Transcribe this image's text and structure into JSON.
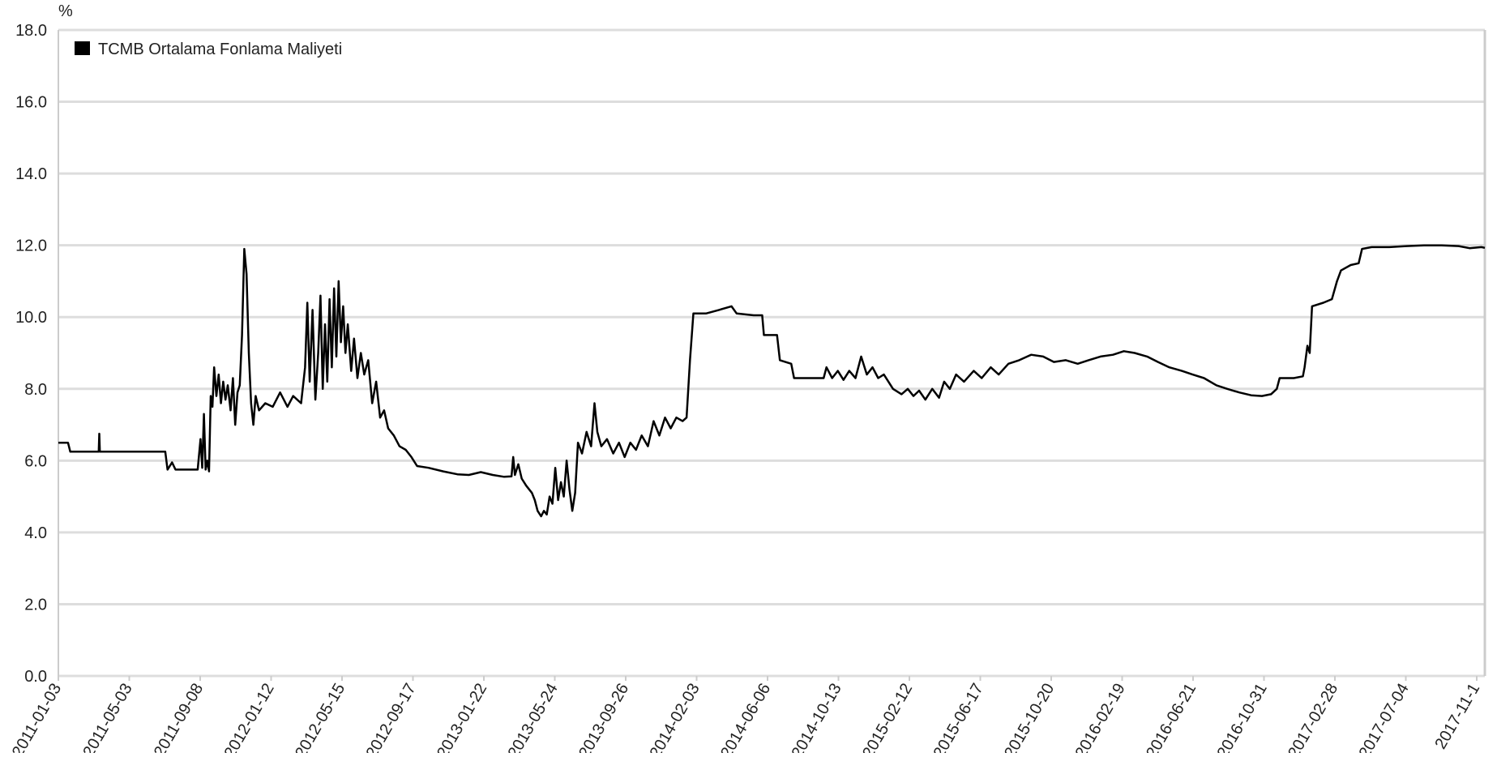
{
  "chart_data": {
    "type": "line",
    "unit_label": "%",
    "ylim": [
      0,
      18
    ],
    "yticks": [
      "0.0",
      "2.0",
      "4.0",
      "6.0",
      "8.0",
      "10.0",
      "12.0",
      "14.0",
      "16.0",
      "18.0"
    ],
    "xlim": [
      "2011-01-03",
      "2017-11-16"
    ],
    "xtick_labels": [
      "2011-01-03",
      "2011-05-03",
      "2011-09-08",
      "2012-01-12",
      "2012-05-15",
      "2012-09-17",
      "2013-01-22",
      "2013-05-24",
      "2013-09-26",
      "2014-02-03",
      "2014-06-06",
      "2014-10-13",
      "2015-02-12",
      "2015-06-17",
      "2015-10-20",
      "2016-02-19",
      "2016-06-21",
      "2016-10-31",
      "2017-02-28",
      "2017-07-04",
      "2017-11-1"
    ],
    "grid": true,
    "legend_position": "top-left",
    "colors": {
      "series": "#000000",
      "grid": "#dddddd",
      "frame": "#cccccc",
      "text": "#222222"
    },
    "series": [
      {
        "name": "TCMB Ortalama Fonlama Maliyeti",
        "points": [
          [
            "2011-01-03",
            6.5
          ],
          [
            "2011-01-20",
            6.5
          ],
          [
            "2011-01-24",
            6.25
          ],
          [
            "2011-03-15",
            6.25
          ],
          [
            "2011-03-16",
            6.75
          ],
          [
            "2011-03-17",
            6.25
          ],
          [
            "2011-06-28",
            6.25
          ],
          [
            "2011-07-10",
            6.25
          ],
          [
            "2011-07-14",
            5.75
          ],
          [
            "2011-07-22",
            5.95
          ],
          [
            "2011-07-28",
            5.75
          ],
          [
            "2011-09-05",
            5.75
          ],
          [
            "2011-09-10",
            6.6
          ],
          [
            "2011-09-13",
            5.8
          ],
          [
            "2011-09-16",
            7.3
          ],
          [
            "2011-09-19",
            5.75
          ],
          [
            "2011-09-22",
            6.0
          ],
          [
            "2011-09-25",
            5.7
          ],
          [
            "2011-09-28",
            7.8
          ],
          [
            "2011-10-01",
            7.5
          ],
          [
            "2011-10-04",
            8.6
          ],
          [
            "2011-10-08",
            7.8
          ],
          [
            "2011-10-12",
            8.4
          ],
          [
            "2011-10-16",
            7.6
          ],
          [
            "2011-10-20",
            8.2
          ],
          [
            "2011-10-24",
            7.7
          ],
          [
            "2011-10-28",
            8.1
          ],
          [
            "2011-11-02",
            7.4
          ],
          [
            "2011-11-06",
            8.3
          ],
          [
            "2011-11-10",
            7.0
          ],
          [
            "2011-11-14",
            7.9
          ],
          [
            "2011-11-18",
            8.1
          ],
          [
            "2011-11-22",
            9.5
          ],
          [
            "2011-11-26",
            11.9
          ],
          [
            "2011-11-30",
            11.2
          ],
          [
            "2011-12-04",
            9.0
          ],
          [
            "2011-12-08",
            7.6
          ],
          [
            "2011-12-12",
            7.0
          ],
          [
            "2011-12-16",
            7.8
          ],
          [
            "2011-12-22",
            7.4
          ],
          [
            "2012-01-02",
            7.6
          ],
          [
            "2012-01-15",
            7.5
          ],
          [
            "2012-01-28",
            7.9
          ],
          [
            "2012-02-10",
            7.5
          ],
          [
            "2012-02-20",
            7.8
          ],
          [
            "2012-03-05",
            7.6
          ],
          [
            "2012-03-12",
            8.6
          ],
          [
            "2012-03-16",
            10.4
          ],
          [
            "2012-03-20",
            8.2
          ],
          [
            "2012-03-25",
            10.2
          ],
          [
            "2012-03-30",
            7.7
          ],
          [
            "2012-04-04",
            9.0
          ],
          [
            "2012-04-08",
            10.6
          ],
          [
            "2012-04-12",
            8.0
          ],
          [
            "2012-04-16",
            9.8
          ],
          [
            "2012-04-20",
            8.2
          ],
          [
            "2012-04-24",
            10.5
          ],
          [
            "2012-04-28",
            8.6
          ],
          [
            "2012-05-02",
            10.8
          ],
          [
            "2012-05-06",
            8.9
          ],
          [
            "2012-05-10",
            11.0
          ],
          [
            "2012-05-14",
            9.3
          ],
          [
            "2012-05-18",
            10.3
          ],
          [
            "2012-05-22",
            9.0
          ],
          [
            "2012-05-26",
            9.8
          ],
          [
            "2012-06-01",
            8.5
          ],
          [
            "2012-06-06",
            9.4
          ],
          [
            "2012-06-12",
            8.3
          ],
          [
            "2012-06-18",
            9.0
          ],
          [
            "2012-06-24",
            8.4
          ],
          [
            "2012-07-01",
            8.8
          ],
          [
            "2012-07-08",
            7.6
          ],
          [
            "2012-07-15",
            8.2
          ],
          [
            "2012-07-22",
            7.2
          ],
          [
            "2012-07-29",
            7.4
          ],
          [
            "2012-08-05",
            6.9
          ],
          [
            "2012-08-15",
            6.7
          ],
          [
            "2012-08-25",
            6.4
          ],
          [
            "2012-09-05",
            6.3
          ],
          [
            "2012-09-15",
            6.1
          ],
          [
            "2012-09-25",
            5.85
          ],
          [
            "2012-10-15",
            5.8
          ],
          [
            "2012-11-10",
            5.7
          ],
          [
            "2012-12-05",
            5.62
          ],
          [
            "2012-12-25",
            5.6
          ],
          [
            "2013-01-15",
            5.68
          ],
          [
            "2013-02-05",
            5.6
          ],
          [
            "2013-02-25",
            5.55
          ],
          [
            "2013-03-10",
            5.56
          ],
          [
            "2013-03-13",
            6.1
          ],
          [
            "2013-03-16",
            5.6
          ],
          [
            "2013-03-22",
            5.9
          ],
          [
            "2013-03-28",
            5.5
          ],
          [
            "2013-04-05",
            5.3
          ],
          [
            "2013-04-15",
            5.1
          ],
          [
            "2013-04-20",
            4.9
          ],
          [
            "2013-04-25",
            4.6
          ],
          [
            "2013-05-01",
            4.45
          ],
          [
            "2013-05-06",
            4.6
          ],
          [
            "2013-05-11",
            4.5
          ],
          [
            "2013-05-16",
            5.0
          ],
          [
            "2013-05-21",
            4.8
          ],
          [
            "2013-05-26",
            5.8
          ],
          [
            "2013-05-31",
            4.9
          ],
          [
            "2013-06-05",
            5.4
          ],
          [
            "2013-06-10",
            5.0
          ],
          [
            "2013-06-15",
            6.0
          ],
          [
            "2013-06-20",
            5.2
          ],
          [
            "2013-06-25",
            4.6
          ],
          [
            "2013-06-30",
            5.1
          ],
          [
            "2013-07-05",
            6.5
          ],
          [
            "2013-07-12",
            6.2
          ],
          [
            "2013-07-20",
            6.8
          ],
          [
            "2013-07-28",
            6.4
          ],
          [
            "2013-08-03",
            7.6
          ],
          [
            "2013-08-08",
            6.8
          ],
          [
            "2013-08-15",
            6.4
          ],
          [
            "2013-08-25",
            6.6
          ],
          [
            "2013-09-05",
            6.2
          ],
          [
            "2013-09-15",
            6.5
          ],
          [
            "2013-09-25",
            6.1
          ],
          [
            "2013-10-05",
            6.5
          ],
          [
            "2013-10-15",
            6.3
          ],
          [
            "2013-10-25",
            6.7
          ],
          [
            "2013-11-05",
            6.4
          ],
          [
            "2013-11-15",
            7.1
          ],
          [
            "2013-11-25",
            6.7
          ],
          [
            "2013-12-05",
            7.2
          ],
          [
            "2013-12-15",
            6.9
          ],
          [
            "2013-12-25",
            7.2
          ],
          [
            "2014-01-05",
            7.1
          ],
          [
            "2014-01-12",
            7.2
          ],
          [
            "2014-01-18",
            8.8
          ],
          [
            "2014-01-24",
            10.1
          ],
          [
            "2014-02-15",
            10.1
          ],
          [
            "2014-03-10",
            10.2
          ],
          [
            "2014-04-01",
            10.3
          ],
          [
            "2014-04-10",
            10.1
          ],
          [
            "2014-05-10",
            10.05
          ],
          [
            "2014-05-25",
            10.05
          ],
          [
            "2014-05-28",
            9.5
          ],
          [
            "2014-06-20",
            9.5
          ],
          [
            "2014-06-25",
            8.8
          ],
          [
            "2014-07-15",
            8.7
          ],
          [
            "2014-07-20",
            8.3
          ],
          [
            "2014-09-10",
            8.3
          ],
          [
            "2014-09-15",
            8.6
          ],
          [
            "2014-09-25",
            8.3
          ],
          [
            "2014-10-05",
            8.5
          ],
          [
            "2014-10-15",
            8.25
          ],
          [
            "2014-10-25",
            8.5
          ],
          [
            "2014-11-05",
            8.3
          ],
          [
            "2014-11-15",
            8.9
          ],
          [
            "2014-11-25",
            8.4
          ],
          [
            "2014-12-05",
            8.6
          ],
          [
            "2014-12-15",
            8.3
          ],
          [
            "2014-12-25",
            8.4
          ],
          [
            "2015-01-10",
            8.0
          ],
          [
            "2015-01-25",
            7.85
          ],
          [
            "2015-02-05",
            8.0
          ],
          [
            "2015-02-15",
            7.8
          ],
          [
            "2015-02-25",
            7.95
          ],
          [
            "2015-03-08",
            7.7
          ],
          [
            "2015-03-20",
            8.0
          ],
          [
            "2015-04-01",
            7.75
          ],
          [
            "2015-04-10",
            8.2
          ],
          [
            "2015-04-20",
            8.0
          ],
          [
            "2015-05-01",
            8.4
          ],
          [
            "2015-05-15",
            8.2
          ],
          [
            "2015-06-01",
            8.5
          ],
          [
            "2015-06-15",
            8.3
          ],
          [
            "2015-07-01",
            8.6
          ],
          [
            "2015-07-15",
            8.4
          ],
          [
            "2015-08-01",
            8.7
          ],
          [
            "2015-08-20",
            8.8
          ],
          [
            "2015-09-10",
            8.95
          ],
          [
            "2015-10-01",
            8.9
          ],
          [
            "2015-10-20",
            8.75
          ],
          [
            "2015-11-10",
            8.8
          ],
          [
            "2015-12-01",
            8.7
          ],
          [
            "2015-12-20",
            8.8
          ],
          [
            "2016-01-10",
            8.9
          ],
          [
            "2016-02-01",
            8.95
          ],
          [
            "2016-02-20",
            9.05
          ],
          [
            "2016-03-10",
            9.0
          ],
          [
            "2016-04-01",
            8.9
          ],
          [
            "2016-04-20",
            8.75
          ],
          [
            "2016-05-10",
            8.6
          ],
          [
            "2016-06-01",
            8.5
          ],
          [
            "2016-06-20",
            8.4
          ],
          [
            "2016-07-10",
            8.3
          ],
          [
            "2016-08-01",
            8.1
          ],
          [
            "2016-08-20",
            8.0
          ],
          [
            "2016-09-10",
            7.9
          ],
          [
            "2016-10-01",
            7.82
          ],
          [
            "2016-10-20",
            7.8
          ],
          [
            "2016-11-05",
            7.85
          ],
          [
            "2016-11-15",
            8.0
          ],
          [
            "2016-11-20",
            8.3
          ],
          [
            "2016-12-15",
            8.3
          ],
          [
            "2016-12-31",
            8.35
          ],
          [
            "2017-01-03",
            8.6
          ],
          [
            "2017-01-08",
            9.2
          ],
          [
            "2017-01-12",
            9.0
          ],
          [
            "2017-01-16",
            10.3
          ],
          [
            "2017-02-05",
            10.4
          ],
          [
            "2017-02-20",
            10.5
          ],
          [
            "2017-03-01",
            11.0
          ],
          [
            "2017-03-08",
            11.3
          ],
          [
            "2017-03-25",
            11.45
          ],
          [
            "2017-04-08",
            11.5
          ],
          [
            "2017-04-14",
            11.9
          ],
          [
            "2017-05-01",
            11.95
          ],
          [
            "2017-06-01",
            11.95
          ],
          [
            "2017-07-01",
            11.98
          ],
          [
            "2017-08-01",
            12.0
          ],
          [
            "2017-09-01",
            12.0
          ],
          [
            "2017-10-01",
            11.98
          ],
          [
            "2017-10-20",
            11.92
          ],
          [
            "2017-11-10",
            11.95
          ],
          [
            "2017-11-16",
            11.93
          ]
        ]
      }
    ]
  }
}
